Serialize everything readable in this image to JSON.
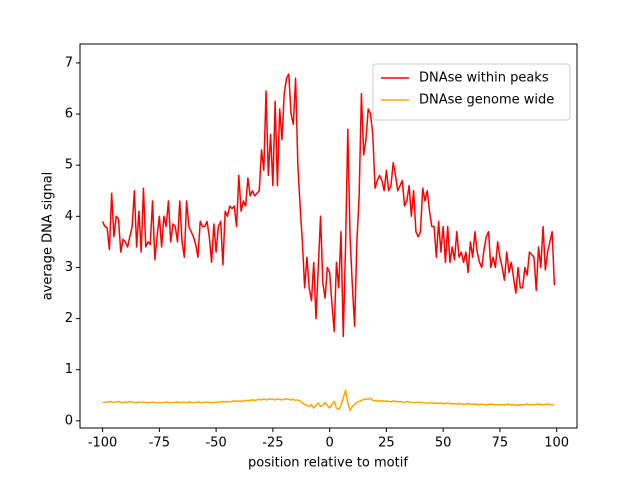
{
  "chart_data": {
    "type": "line",
    "xlabel": "position relative to motif",
    "ylabel": "average DNA signal",
    "x": [
      -100,
      -99,
      -98,
      -97,
      -96,
      -95,
      -94,
      -93,
      -92,
      -91,
      -90,
      -89,
      -88,
      -87,
      -86,
      -85,
      -84,
      -83,
      -82,
      -81,
      -80,
      -79,
      -78,
      -77,
      -76,
      -75,
      -74,
      -73,
      -72,
      -71,
      -70,
      -69,
      -68,
      -67,
      -66,
      -65,
      -64,
      -63,
      -62,
      -61,
      -60,
      -59,
      -58,
      -57,
      -56,
      -55,
      -54,
      -53,
      -52,
      -51,
      -50,
      -49,
      -48,
      -47,
      -46,
      -45,
      -44,
      -43,
      -42,
      -41,
      -40,
      -39,
      -38,
      -37,
      -36,
      -35,
      -34,
      -33,
      -32,
      -31,
      -30,
      -29,
      -28,
      -27,
      -26,
      -25,
      -24,
      -23,
      -22,
      -21,
      -20,
      -19,
      -18,
      -17,
      -16,
      -15,
      -14,
      -13,
      -12,
      -11,
      -10,
      -9,
      -8,
      -7,
      -6,
      -5,
      -4,
      -3,
      -2,
      -1,
      0,
      1,
      2,
      3,
      4,
      5,
      6,
      7,
      8,
      9,
      10,
      11,
      12,
      13,
      14,
      15,
      16,
      17,
      18,
      19,
      20,
      21,
      22,
      23,
      24,
      25,
      26,
      27,
      28,
      29,
      30,
      31,
      32,
      33,
      34,
      35,
      36,
      37,
      38,
      39,
      40,
      41,
      42,
      43,
      44,
      45,
      46,
      47,
      48,
      49,
      50,
      51,
      52,
      53,
      54,
      55,
      56,
      57,
      58,
      59,
      60,
      61,
      62,
      63,
      64,
      65,
      66,
      67,
      68,
      69,
      70,
      71,
      72,
      73,
      74,
      75,
      76,
      77,
      78,
      79,
      80,
      81,
      82,
      83,
      84,
      85,
      86,
      87,
      88,
      89,
      90,
      91,
      92,
      93,
      94,
      95,
      96,
      97,
      98,
      99
    ],
    "series": [
      {
        "name": "DNAse within peaks",
        "color": "#ff0000",
        "values": [
          3.9,
          3.8,
          3.78,
          3.35,
          4.45,
          3.6,
          4.0,
          3.95,
          3.3,
          3.55,
          3.5,
          3.4,
          3.6,
          3.8,
          4.5,
          3.4,
          4.1,
          3.3,
          4.55,
          3.4,
          3.5,
          3.45,
          4.3,
          3.15,
          3.6,
          4.0,
          3.4,
          4.0,
          3.8,
          4.3,
          3.5,
          3.85,
          3.8,
          3.5,
          4.3,
          3.5,
          3.2,
          4.3,
          3.8,
          3.7,
          3.6,
          3.45,
          3.2,
          3.9,
          3.8,
          3.8,
          3.9,
          3.6,
          3.1,
          3.85,
          3.3,
          3.8,
          3.9,
          3.05,
          4.1,
          4.0,
          4.2,
          4.15,
          4.2,
          3.8,
          4.8,
          4.1,
          4.3,
          4.2,
          4.75,
          4.4,
          4.5,
          4.4,
          4.45,
          4.5,
          5.3,
          4.9,
          6.45,
          4.8,
          5.6,
          4.6,
          6.25,
          4.6,
          6.1,
          5.5,
          6.4,
          6.7,
          6.78,
          6.0,
          5.8,
          6.7,
          5.0,
          4.2,
          3.5,
          2.6,
          3.2,
          2.6,
          2.35,
          3.1,
          2.0,
          3.0,
          4.0,
          2.7,
          2.4,
          3.0,
          2.9,
          2.3,
          1.75,
          3.1,
          2.6,
          3.7,
          1.65,
          3.4,
          5.7,
          3.6,
          2.65,
          1.85,
          3.5,
          4.4,
          6.4,
          5.2,
          5.5,
          6.1,
          6.0,
          5.6,
          4.55,
          4.7,
          4.8,
          4.7,
          4.5,
          4.9,
          4.5,
          4.6,
          5.05,
          4.8,
          4.5,
          4.6,
          4.7,
          4.2,
          4.3,
          4.6,
          4.0,
          4.5,
          3.7,
          3.6,
          3.7,
          4.55,
          4.3,
          4.5,
          4.1,
          3.8,
          3.8,
          3.2,
          3.9,
          3.3,
          3.8,
          3.1,
          3.8,
          3.1,
          3.4,
          3.15,
          3.7,
          3.2,
          3.3,
          3.1,
          3.3,
          2.9,
          3.5,
          3.2,
          3.7,
          3.3,
          3.1,
          3.0,
          3.35,
          3.6,
          3.7,
          3.0,
          3.2,
          3.0,
          3.5,
          3.2,
          3.0,
          2.75,
          3.3,
          2.9,
          3.1,
          2.8,
          2.5,
          3.0,
          2.6,
          2.6,
          3.0,
          2.85,
          3.3,
          3.25,
          3.2,
          2.55,
          3.4,
          3.0,
          3.8,
          2.95,
          3.3,
          3.5,
          3.7,
          2.65
        ]
      },
      {
        "name": "DNAse genome wide",
        "color": "#ffa500",
        "values": [
          0.36,
          0.37,
          0.36,
          0.38,
          0.37,
          0.36,
          0.37,
          0.38,
          0.36,
          0.35,
          0.37,
          0.36,
          0.38,
          0.37,
          0.36,
          0.35,
          0.37,
          0.36,
          0.37,
          0.36,
          0.35,
          0.36,
          0.37,
          0.36,
          0.35,
          0.36,
          0.35,
          0.36,
          0.37,
          0.36,
          0.35,
          0.36,
          0.36,
          0.37,
          0.35,
          0.36,
          0.36,
          0.35,
          0.37,
          0.36,
          0.35,
          0.36,
          0.37,
          0.36,
          0.35,
          0.36,
          0.37,
          0.36,
          0.35,
          0.36,
          0.36,
          0.37,
          0.36,
          0.38,
          0.37,
          0.38,
          0.37,
          0.38,
          0.39,
          0.38,
          0.39,
          0.38,
          0.39,
          0.4,
          0.39,
          0.4,
          0.41,
          0.4,
          0.41,
          0.42,
          0.41,
          0.43,
          0.41,
          0.42,
          0.43,
          0.42,
          0.41,
          0.43,
          0.42,
          0.41,
          0.42,
          0.43,
          0.42,
          0.41,
          0.42,
          0.4,
          0.41,
          0.39,
          0.35,
          0.32,
          0.3,
          0.28,
          0.32,
          0.25,
          0.3,
          0.35,
          0.28,
          0.3,
          0.36,
          0.3,
          0.25,
          0.32,
          0.38,
          0.25,
          0.22,
          0.3,
          0.45,
          0.6,
          0.35,
          0.2,
          0.28,
          0.32,
          0.36,
          0.38,
          0.4,
          0.42,
          0.43,
          0.42,
          0.44,
          0.4,
          0.39,
          0.4,
          0.38,
          0.39,
          0.38,
          0.39,
          0.38,
          0.37,
          0.39,
          0.38,
          0.37,
          0.38,
          0.37,
          0.36,
          0.38,
          0.37,
          0.36,
          0.35,
          0.36,
          0.37,
          0.35,
          0.36,
          0.35,
          0.34,
          0.35,
          0.36,
          0.34,
          0.35,
          0.34,
          0.35,
          0.34,
          0.33,
          0.35,
          0.34,
          0.33,
          0.34,
          0.33,
          0.34,
          0.33,
          0.32,
          0.33,
          0.34,
          0.33,
          0.32,
          0.33,
          0.32,
          0.31,
          0.33,
          0.32,
          0.31,
          0.32,
          0.33,
          0.32,
          0.31,
          0.32,
          0.31,
          0.32,
          0.31,
          0.32,
          0.33,
          0.31,
          0.32,
          0.31,
          0.3,
          0.32,
          0.31,
          0.32,
          0.33,
          0.31,
          0.32,
          0.31,
          0.32,
          0.33,
          0.32,
          0.31,
          0.32,
          0.33,
          0.32,
          0.31,
          0.32
        ]
      }
    ],
    "xlim": [
      -109.95,
      108.95
    ],
    "xticks": [
      -100,
      -75,
      -50,
      -25,
      0,
      25,
      50,
      75,
      100
    ],
    "ylim": [
      -0.14,
      7.37
    ],
    "yticks": [
      0,
      1,
      2,
      3,
      4,
      5,
      6,
      7
    ],
    "legend": "upper right",
    "grid": false
  }
}
